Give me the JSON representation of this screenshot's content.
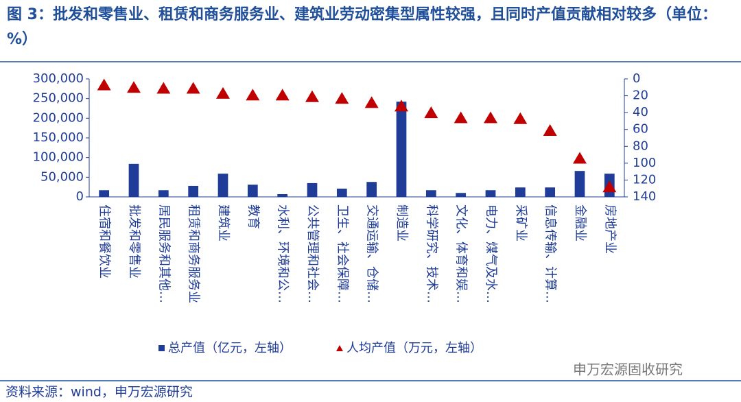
{
  "chart_data": {
    "type": "bar",
    "title": "图 3：批发和零售业、租赁和商务服务业、建筑业劳动密集型属性较强，且同时产值贡献相对较多（单位：%）",
    "categories": [
      "住宿和餐饮业",
      "批发和零售业",
      "居民服务和其他…",
      "租赁和商务服务业",
      "建筑业",
      "教育",
      "水利、环境和公…",
      "公共管理和社会…",
      "卫生、社会保障…",
      "交通运输、仓储…",
      "制造业",
      "科学研究、技术…",
      "文化、体育和娱…",
      "电力、煤气及水…",
      "采矿业",
      "信息传输、计算…",
      "金融业",
      "房地产业"
    ],
    "series": [
      {
        "name": "总产值（亿元，左轴）",
        "type": "bar",
        "color": "#1f3c99",
        "values": [
          17000,
          84000,
          17000,
          28000,
          59000,
          31000,
          7000,
          35000,
          21000,
          38000,
          242000,
          17000,
          10000,
          17000,
          24000,
          24000,
          66000,
          59000
        ]
      },
      {
        "name": "人均产值（万元，左轴）",
        "type": "scatter",
        "marker": "triangle",
        "axis": "y2",
        "color": "#c00000",
        "values": [
          7,
          10,
          11,
          11,
          17,
          19,
          19,
          21,
          23,
          28,
          32,
          40,
          46,
          46,
          47,
          61,
          94,
          128
        ]
      }
    ],
    "ylim": [
      0,
      300000
    ],
    "yticks": [
      {
        "value": 0,
        "label": "0"
      },
      {
        "value": 50000,
        "label": "50,000"
      },
      {
        "value": 100000,
        "label": "100,000"
      },
      {
        "value": 150000,
        "label": "150,000"
      },
      {
        "value": 200000,
        "label": "200,000"
      },
      {
        "value": 250000,
        "label": "250,000"
      },
      {
        "value": 300000,
        "label": "300,000"
      }
    ],
    "y2lim": [
      0,
      140
    ],
    "y2_inverted": true,
    "y2ticks": [
      0,
      20,
      40,
      60,
      80,
      100,
      120,
      140
    ],
    "grid": false
  },
  "source": "资料来源：wind，申万宏源研究",
  "watermark": "申万宏源固收研究"
}
